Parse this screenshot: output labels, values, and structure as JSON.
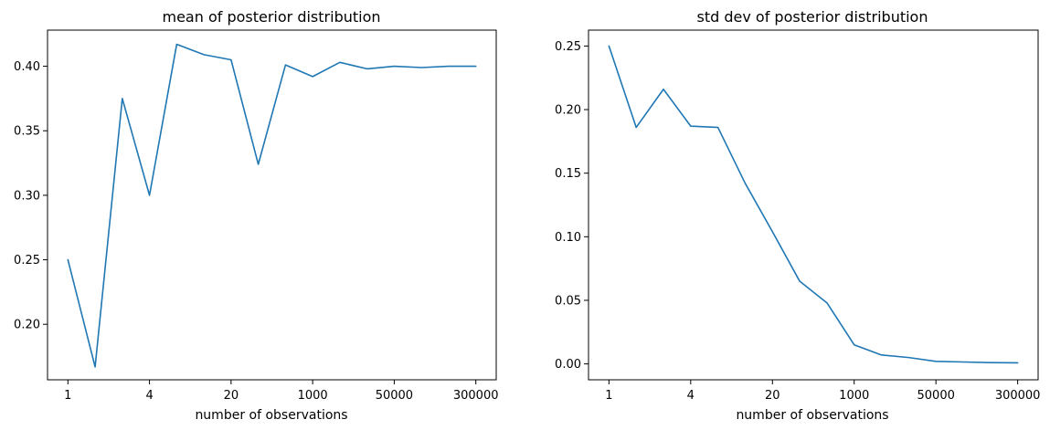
{
  "chart_data": [
    {
      "type": "line",
      "title": "mean of posterior distribution",
      "xlabel": "number of observations",
      "ylabel": "",
      "x_tick_labels": [
        "1",
        "4",
        "20",
        "1000",
        "50000",
        "300000"
      ],
      "x_tick_positions": [
        0,
        3,
        6,
        9,
        12,
        15
      ],
      "y_ticks": [
        0.2,
        0.25,
        0.3,
        0.35,
        0.4
      ],
      "y_tick_labels": [
        "0.20",
        "0.25",
        "0.30",
        "0.35",
        "0.40"
      ],
      "ylim": [
        0.157,
        0.428
      ],
      "xlim": [
        -0.75,
        15.75
      ],
      "color": "#1f77b4",
      "grid": false,
      "x": [
        0,
        1,
        2,
        3,
        4,
        5,
        6,
        7,
        8,
        9,
        10,
        11,
        12,
        13,
        14,
        15
      ],
      "values": [
        0.25,
        0.167,
        0.375,
        0.3,
        0.417,
        0.409,
        0.405,
        0.324,
        0.401,
        0.392,
        0.403,
        0.398,
        0.4,
        0.399,
        0.4,
        0.4
      ]
    },
    {
      "type": "line",
      "title": "std dev of posterior distribution",
      "xlabel": "number of observations",
      "ylabel": "",
      "x_tick_labels": [
        "1",
        "4",
        "20",
        "1000",
        "50000",
        "300000"
      ],
      "x_tick_positions": [
        0,
        3,
        6,
        9,
        12,
        15
      ],
      "y_ticks": [
        0.0,
        0.05,
        0.1,
        0.15,
        0.2,
        0.25
      ],
      "y_tick_labels": [
        "0.00",
        "0.05",
        "0.10",
        "0.15",
        "0.20",
        "0.25"
      ],
      "ylim": [
        -0.0125,
        0.2625
      ],
      "xlim": [
        -0.75,
        15.75
      ],
      "color": "#1f77b4",
      "grid": false,
      "x": [
        0,
        1,
        2,
        3,
        4,
        5,
        6,
        7,
        8,
        9,
        10,
        11,
        12,
        13,
        14,
        15
      ],
      "values": [
        0.25,
        0.186,
        0.216,
        0.187,
        0.186,
        0.142,
        0.104,
        0.065,
        0.048,
        0.015,
        0.007,
        0.005,
        0.002,
        0.0015,
        0.001,
        0.0008
      ]
    }
  ]
}
